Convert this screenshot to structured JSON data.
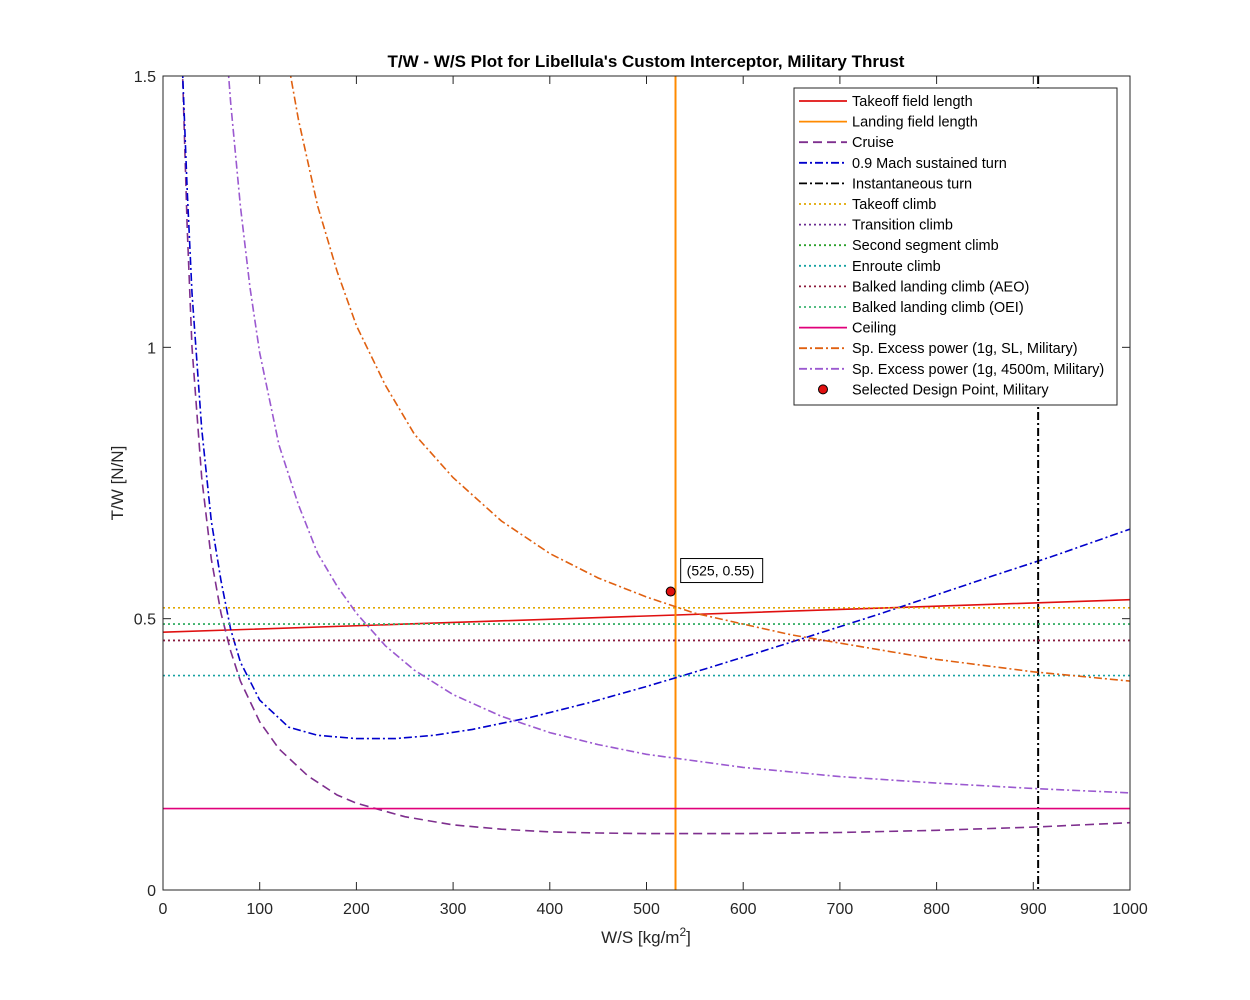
{
  "chart_data": {
    "type": "line",
    "title": "T/W - W/S Plot for Libellula's Custom Interceptor, Military Thrust",
    "xlabel": "W/S [kg/m",
    "xlabel_sup": "2",
    "xlabel_suffix": "]",
    "ylabel": "T/W [N/N]",
    "xlim": [
      0,
      1000
    ],
    "ylim": [
      0,
      1.5
    ],
    "xticks": [
      0,
      100,
      200,
      300,
      400,
      500,
      600,
      700,
      800,
      900,
      1000
    ],
    "xtick_labels": [
      "0",
      "100",
      "200",
      "300",
      "400",
      "500",
      "600",
      "700",
      "800",
      "900",
      "1000"
    ],
    "yticks": [
      0,
      0.5,
      1,
      1.5
    ],
    "ytick_labels": [
      "0",
      "0.5",
      "1",
      "1.5"
    ],
    "grid": false,
    "legend_position": "top-right",
    "series": [
      {
        "name": "Takeoff field length",
        "color": "#e01010",
        "dash": "solid",
        "x": [
          0,
          250,
          500,
          750,
          1000
        ],
        "y": [
          0.475,
          0.49,
          0.505,
          0.52,
          0.535
        ]
      },
      {
        "name": "Landing field length",
        "color": "#ff8a00",
        "dash": "solid",
        "vertical_x": 530
      },
      {
        "name": "Cruise",
        "color": "#7e2f8e",
        "dash": "dashed",
        "x": [
          20,
          25,
          30,
          40,
          50,
          60,
          70,
          80,
          100,
          120,
          150,
          180,
          200,
          250,
          300,
          350,
          400,
          450,
          500,
          550,
          600,
          700,
          800,
          900,
          1000
        ],
        "y": [
          1.52,
          1.22,
          1.0,
          0.76,
          0.61,
          0.51,
          0.44,
          0.385,
          0.31,
          0.26,
          0.21,
          0.175,
          0.16,
          0.135,
          0.12,
          0.112,
          0.107,
          0.105,
          0.104,
          0.104,
          0.104,
          0.106,
          0.11,
          0.116,
          0.124
        ]
      },
      {
        "name": "0.9 Mach sustained turn",
        "color": "#0000cc",
        "dash": "dashdot",
        "x": [
          20,
          25,
          30,
          40,
          50,
          60,
          70,
          80,
          100,
          130,
          160,
          200,
          240,
          280,
          320,
          380,
          440,
          500,
          560,
          620,
          680,
          740,
          800,
          860,
          920,
          1000
        ],
        "y": [
          1.52,
          1.29,
          1.1,
          0.85,
          0.68,
          0.57,
          0.48,
          0.42,
          0.35,
          0.3,
          0.285,
          0.279,
          0.279,
          0.285,
          0.296,
          0.318,
          0.345,
          0.375,
          0.407,
          0.44,
          0.474,
          0.508,
          0.544,
          0.58,
          0.615,
          0.665
        ]
      },
      {
        "name": "Instantaneous turn",
        "color": "#000000",
        "dash": "dashdot",
        "vertical_x": 905
      },
      {
        "name": "Takeoff climb",
        "color": "#e0a800",
        "dash": "dotted",
        "x": [
          0,
          1000
        ],
        "y": [
          0.52,
          0.52
        ]
      },
      {
        "name": "Transition climb",
        "color": "#6a2c91",
        "dash": "dotted",
        "x": [
          0,
          1000
        ],
        "y": [
          0.46,
          0.46
        ]
      },
      {
        "name": "Second segment climb",
        "color": "#2ca02c",
        "dash": "dotted",
        "x": [
          0,
          1000
        ],
        "y": [
          0.49,
          0.49
        ]
      },
      {
        "name": "Enroute climb",
        "color": "#17a2a2",
        "dash": "dotted",
        "x": [
          0,
          1000
        ],
        "y": [
          0.395,
          0.395
        ]
      },
      {
        "name": "Balked landing climb (AEO)",
        "color": "#8b1a3a",
        "dash": "dotted",
        "x": [
          0,
          1000
        ],
        "y": [
          0.46,
          0.46
        ]
      },
      {
        "name": "Balked landing climb (OEI)",
        "color": "#3cb371",
        "dash": "dotted",
        "x": [
          0,
          1000
        ],
        "y": [
          0.49,
          0.49
        ]
      },
      {
        "name": "Ceiling",
        "color": "#e0007a",
        "dash": "solid",
        "x": [
          0,
          1000
        ],
        "y": [
          0.15,
          0.15
        ]
      },
      {
        "name": "Sp. Excess power (1g, SL, Military)",
        "color": "#e06010",
        "dash": "dashdot",
        "x": [
          130,
          140,
          160,
          180,
          200,
          230,
          260,
          300,
          350,
          400,
          450,
          500,
          550,
          600,
          650,
          700,
          800,
          900,
          1000
        ],
        "y": [
          1.52,
          1.42,
          1.26,
          1.14,
          1.04,
          0.93,
          0.84,
          0.76,
          0.68,
          0.62,
          0.575,
          0.54,
          0.51,
          0.49,
          0.47,
          0.455,
          0.425,
          0.402,
          0.385
        ]
      },
      {
        "name": "Sp. Excess power (1g, 4500m, Military)",
        "color": "#9b59d0",
        "dash": "dashdot",
        "x": [
          67,
          70,
          80,
          90,
          100,
          120,
          140,
          160,
          180,
          200,
          230,
          260,
          300,
          350,
          400,
          450,
          500,
          600,
          700,
          800,
          900,
          1000
        ],
        "y": [
          1.52,
          1.45,
          1.26,
          1.11,
          0.99,
          0.82,
          0.71,
          0.62,
          0.56,
          0.51,
          0.45,
          0.405,
          0.36,
          0.32,
          0.29,
          0.268,
          0.25,
          0.226,
          0.209,
          0.197,
          0.187,
          0.179
        ]
      }
    ],
    "design_point": {
      "name": "Selected Design Point, Military",
      "x": 525,
      "y": 0.55,
      "color": "#e01010",
      "label": "(525, 0.55)"
    }
  }
}
